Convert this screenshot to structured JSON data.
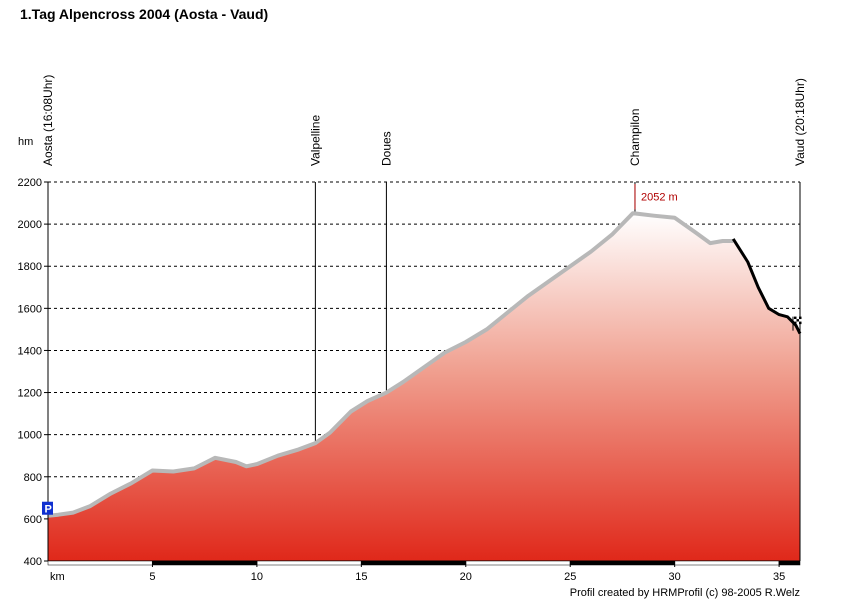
{
  "chart_data": {
    "type": "area",
    "title": "1.Tag Alpencross 2004 (Aosta - Vaud)",
    "xlabel": "km",
    "ylabel": "hm",
    "xlim": [
      0,
      36
    ],
    "ylim": [
      400,
      2200
    ],
    "x_ticks": [
      5,
      10,
      15,
      20,
      25,
      30,
      35
    ],
    "y_ticks": [
      400,
      600,
      800,
      1000,
      1200,
      1400,
      1600,
      1800,
      2000,
      2200
    ],
    "grid": "horizontal-dashed",
    "series": [
      {
        "x": [
          0,
          0.5,
          1.2,
          2,
          3,
          4,
          5,
          6,
          7,
          8,
          9,
          9.5,
          10,
          11,
          12,
          12.8,
          13.5,
          14.5,
          15.3,
          16.2,
          17,
          18,
          19,
          20,
          21,
          22,
          23,
          24,
          25,
          26,
          27,
          28,
          29,
          30,
          31,
          31.7,
          32.3,
          32.8
        ],
        "y": [
          615,
          620,
          630,
          660,
          720,
          770,
          830,
          825,
          840,
          890,
          870,
          850,
          860,
          900,
          930,
          960,
          1010,
          1110,
          1160,
          1200,
          1250,
          1320,
          1390,
          1440,
          1500,
          1580,
          1660,
          1730,
          1800,
          1870,
          1950,
          2052,
          2040,
          2030,
          1960,
          1910,
          1920,
          1920
        ]
      },
      {
        "x": [
          32.8,
          33.5,
          34,
          34.5,
          35,
          35.4,
          35.8,
          36
        ],
        "y": [
          1930,
          1820,
          1700,
          1600,
          1570,
          1560,
          1520,
          1480
        ]
      }
    ],
    "waypoints": [
      {
        "km": 0,
        "label": "Aosta (16:08Uhr)"
      },
      {
        "km": 12.8,
        "label": "Valpelline"
      },
      {
        "km": 16.2,
        "label": "Doues"
      },
      {
        "km": 28.1,
        "label": "Champilon"
      },
      {
        "km": 36,
        "label": "Vaud (20:18Uhr)"
      }
    ],
    "peak_annotation": {
      "km": 28.1,
      "label": "2052 m"
    },
    "start_marker": "P",
    "end_marker": "checkered-flag",
    "credit": "Profil created by HRMProfil (c) 98-2005 R.Welz"
  }
}
